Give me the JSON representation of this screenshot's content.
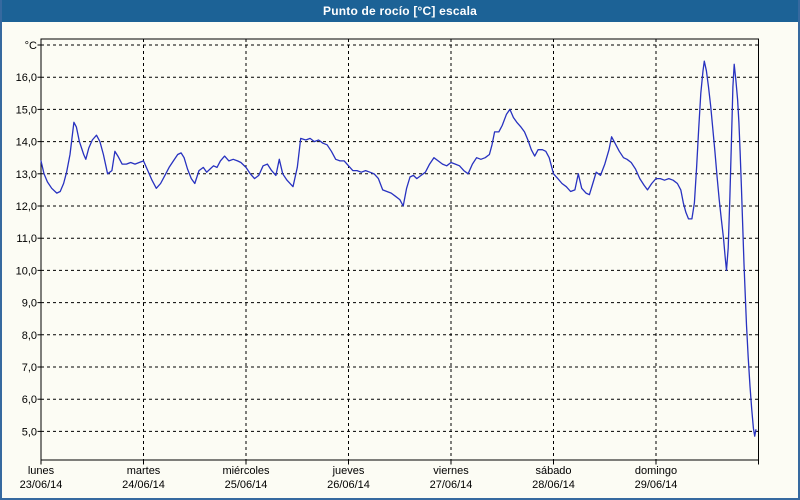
{
  "window": {
    "title": "Punto de rocío [°C] escala"
  },
  "chart_data": {
    "type": "line",
    "title": "Punto de rocío [°C] escala",
    "ylabel": "°C",
    "y_unit_label": "°C",
    "ylim": [
      4.1,
      17.2
    ],
    "grid": "dashed",
    "legend_position": "none",
    "line_color": "#2832c0",
    "grid_color": "#000000",
    "y_ticks": [
      {
        "v": 16,
        "label": "16,0"
      },
      {
        "v": 15,
        "label": "15,0"
      },
      {
        "v": 14,
        "label": "14,0"
      },
      {
        "v": 13,
        "label": "13,0"
      },
      {
        "v": 12,
        "label": "12,0"
      },
      {
        "v": 11,
        "label": "11,0"
      },
      {
        "v": 10,
        "label": "10,0"
      },
      {
        "v": 9,
        "label": "9,0"
      },
      {
        "v": 8,
        "label": "8,0"
      },
      {
        "v": 7,
        "label": "7,0"
      },
      {
        "v": 6,
        "label": "6,0"
      },
      {
        "v": 5,
        "label": "5,0"
      }
    ],
    "x_days": [
      {
        "name": "lunes",
        "date": "23/06/14"
      },
      {
        "name": "martes",
        "date": "24/06/14"
      },
      {
        "name": "miércoles",
        "date": "25/06/14"
      },
      {
        "name": "jueves",
        "date": "26/06/14"
      },
      {
        "name": "viernes",
        "date": "27/06/14"
      },
      {
        "name": "sábado",
        "date": "28/06/14"
      },
      {
        "name": "domingo",
        "date": "29/06/14"
      }
    ],
    "x_hours_total": 168,
    "series": [
      {
        "name": "Punto de rocío",
        "color": "#2832c0",
        "points": [
          [
            0,
            13.4
          ],
          [
            0.7,
            13.0
          ],
          [
            1.5,
            12.75
          ],
          [
            2.5,
            12.55
          ],
          [
            3.7,
            12.4
          ],
          [
            4.5,
            12.45
          ],
          [
            5.3,
            12.7
          ],
          [
            6,
            13.05
          ],
          [
            6.8,
            13.6
          ],
          [
            7.7,
            14.6
          ],
          [
            8.3,
            14.45
          ],
          [
            9,
            14.0
          ],
          [
            10,
            13.6
          ],
          [
            10.5,
            13.45
          ],
          [
            11.2,
            13.8
          ],
          [
            12,
            14.05
          ],
          [
            13,
            14.2
          ],
          [
            13.8,
            14.0
          ],
          [
            14.6,
            13.6
          ],
          [
            15.6,
            13.0
          ],
          [
            16.6,
            13.1
          ],
          [
            17.3,
            13.7
          ],
          [
            18,
            13.55
          ],
          [
            19,
            13.3
          ],
          [
            20,
            13.3
          ],
          [
            21,
            13.35
          ],
          [
            22,
            13.3
          ],
          [
            23,
            13.35
          ],
          [
            24,
            13.4
          ],
          [
            25,
            13.1
          ],
          [
            26,
            12.8
          ],
          [
            27,
            12.55
          ],
          [
            28,
            12.7
          ],
          [
            29,
            12.95
          ],
          [
            30,
            13.2
          ],
          [
            31,
            13.4
          ],
          [
            32,
            13.6
          ],
          [
            32.8,
            13.65
          ],
          [
            33.5,
            13.5
          ],
          [
            34.3,
            13.15
          ],
          [
            35.2,
            12.85
          ],
          [
            36,
            12.7
          ],
          [
            37,
            13.1
          ],
          [
            38,
            13.2
          ],
          [
            38.8,
            13.05
          ],
          [
            39.6,
            13.15
          ],
          [
            40.4,
            13.25
          ],
          [
            41.2,
            13.2
          ],
          [
            42,
            13.4
          ],
          [
            43,
            13.55
          ],
          [
            44,
            13.4
          ],
          [
            45,
            13.45
          ],
          [
            46,
            13.4
          ],
          [
            46.8,
            13.35
          ],
          [
            48,
            13.2
          ],
          [
            49,
            13.0
          ],
          [
            50,
            12.85
          ],
          [
            51,
            12.95
          ],
          [
            52,
            13.25
          ],
          [
            53,
            13.3
          ],
          [
            54,
            13.1
          ],
          [
            55,
            12.95
          ],
          [
            55.8,
            13.45
          ],
          [
            56.6,
            13.0
          ],
          [
            57.6,
            12.8
          ],
          [
            59,
            12.6
          ],
          [
            60,
            13.2
          ],
          [
            60.8,
            14.1
          ],
          [
            62,
            14.05
          ],
          [
            63,
            14.1
          ],
          [
            64,
            14.0
          ],
          [
            65,
            14.05
          ],
          [
            66,
            13.95
          ],
          [
            67,
            13.9
          ],
          [
            68,
            13.7
          ],
          [
            69,
            13.45
          ],
          [
            70,
            13.4
          ],
          [
            71,
            13.4
          ],
          [
            72,
            13.25
          ],
          [
            73,
            13.1
          ],
          [
            74,
            13.1
          ],
          [
            75,
            13.05
          ],
          [
            76,
            13.1
          ],
          [
            77,
            13.05
          ],
          [
            78,
            13.0
          ],
          [
            79,
            12.85
          ],
          [
            80,
            12.5
          ],
          [
            81,
            12.45
          ],
          [
            82,
            12.4
          ],
          [
            83,
            12.3
          ],
          [
            84,
            12.2
          ],
          [
            84.8,
            12.0
          ],
          [
            85.6,
            12.55
          ],
          [
            86.4,
            12.9
          ],
          [
            87.2,
            12.95
          ],
          [
            88,
            12.85
          ],
          [
            89,
            12.95
          ],
          [
            90,
            13.05
          ],
          [
            91,
            13.3
          ],
          [
            92,
            13.5
          ],
          [
            93,
            13.4
          ],
          [
            94,
            13.3
          ],
          [
            95,
            13.25
          ],
          [
            96,
            13.35
          ],
          [
            97,
            13.3
          ],
          [
            98,
            13.25
          ],
          [
            99,
            13.1
          ],
          [
            100,
            13.0
          ],
          [
            101,
            13.3
          ],
          [
            102,
            13.5
          ],
          [
            103,
            13.45
          ],
          [
            104,
            13.5
          ],
          [
            105,
            13.6
          ],
          [
            105.6,
            13.9
          ],
          [
            106.2,
            14.3
          ],
          [
            107.2,
            14.3
          ],
          [
            108,
            14.5
          ],
          [
            109,
            14.85
          ],
          [
            109.8,
            15.0
          ],
          [
            110.6,
            14.75
          ],
          [
            111.4,
            14.6
          ],
          [
            112.4,
            14.45
          ],
          [
            113.2,
            14.3
          ],
          [
            114,
            14.05
          ],
          [
            114.8,
            13.75
          ],
          [
            115.6,
            13.55
          ],
          [
            116.4,
            13.75
          ],
          [
            117.4,
            13.75
          ],
          [
            118.2,
            13.7
          ],
          [
            119,
            13.5
          ],
          [
            120,
            13.0
          ],
          [
            121,
            12.85
          ],
          [
            122,
            12.7
          ],
          [
            123,
            12.6
          ],
          [
            124,
            12.45
          ],
          [
            125,
            12.5
          ],
          [
            125.8,
            13.0
          ],
          [
            126.6,
            12.55
          ],
          [
            127.6,
            12.4
          ],
          [
            128.4,
            12.35
          ],
          [
            129.2,
            12.7
          ],
          [
            130,
            13.05
          ],
          [
            131,
            12.95
          ],
          [
            132,
            13.3
          ],
          [
            133,
            13.75
          ],
          [
            133.6,
            14.15
          ],
          [
            134.4,
            13.95
          ],
          [
            135.4,
            13.7
          ],
          [
            136.4,
            13.5
          ],
          [
            137.2,
            13.45
          ],
          [
            138.2,
            13.35
          ],
          [
            139.2,
            13.15
          ],
          [
            140.2,
            12.85
          ],
          [
            141.2,
            12.65
          ],
          [
            142,
            12.5
          ],
          [
            143,
            12.7
          ],
          [
            144,
            12.85
          ],
          [
            145,
            12.85
          ],
          [
            146,
            12.8
          ],
          [
            147,
            12.85
          ],
          [
            148,
            12.8
          ],
          [
            149,
            12.7
          ],
          [
            149.8,
            12.5
          ],
          [
            150.4,
            12.1
          ],
          [
            151,
            11.8
          ],
          [
            151.6,
            11.6
          ],
          [
            152.4,
            11.6
          ],
          [
            153,
            12.1
          ],
          [
            153.5,
            13.2
          ],
          [
            154,
            14.4
          ],
          [
            154.5,
            15.5
          ],
          [
            155,
            16.2
          ],
          [
            155.3,
            16.5
          ],
          [
            155.8,
            16.2
          ],
          [
            156.3,
            15.7
          ],
          [
            156.8,
            15.1
          ],
          [
            157.3,
            14.4
          ],
          [
            157.8,
            13.7
          ],
          [
            158.3,
            12.9
          ],
          [
            158.8,
            12.2
          ],
          [
            159.3,
            11.6
          ],
          [
            159.8,
            11.0
          ],
          [
            160.2,
            10.4
          ],
          [
            160.5,
            10.0
          ],
          [
            160.9,
            10.7
          ],
          [
            161.3,
            12.3
          ],
          [
            161.7,
            14.2
          ],
          [
            162,
            15.7
          ],
          [
            162.3,
            16.4
          ],
          [
            162.7,
            15.9
          ],
          [
            163.1,
            15.3
          ],
          [
            163.4,
            14.6
          ],
          [
            163.7,
            13.7
          ],
          [
            164,
            12.6
          ],
          [
            164.3,
            11.4
          ],
          [
            164.6,
            10.2
          ],
          [
            164.9,
            9.2
          ],
          [
            165.2,
            8.3
          ],
          [
            165.6,
            7.3
          ],
          [
            166,
            6.4
          ],
          [
            166.4,
            5.7
          ],
          [
            166.8,
            5.1
          ],
          [
            167.1,
            4.85
          ],
          [
            167.4,
            5.05
          ]
        ]
      }
    ]
  }
}
